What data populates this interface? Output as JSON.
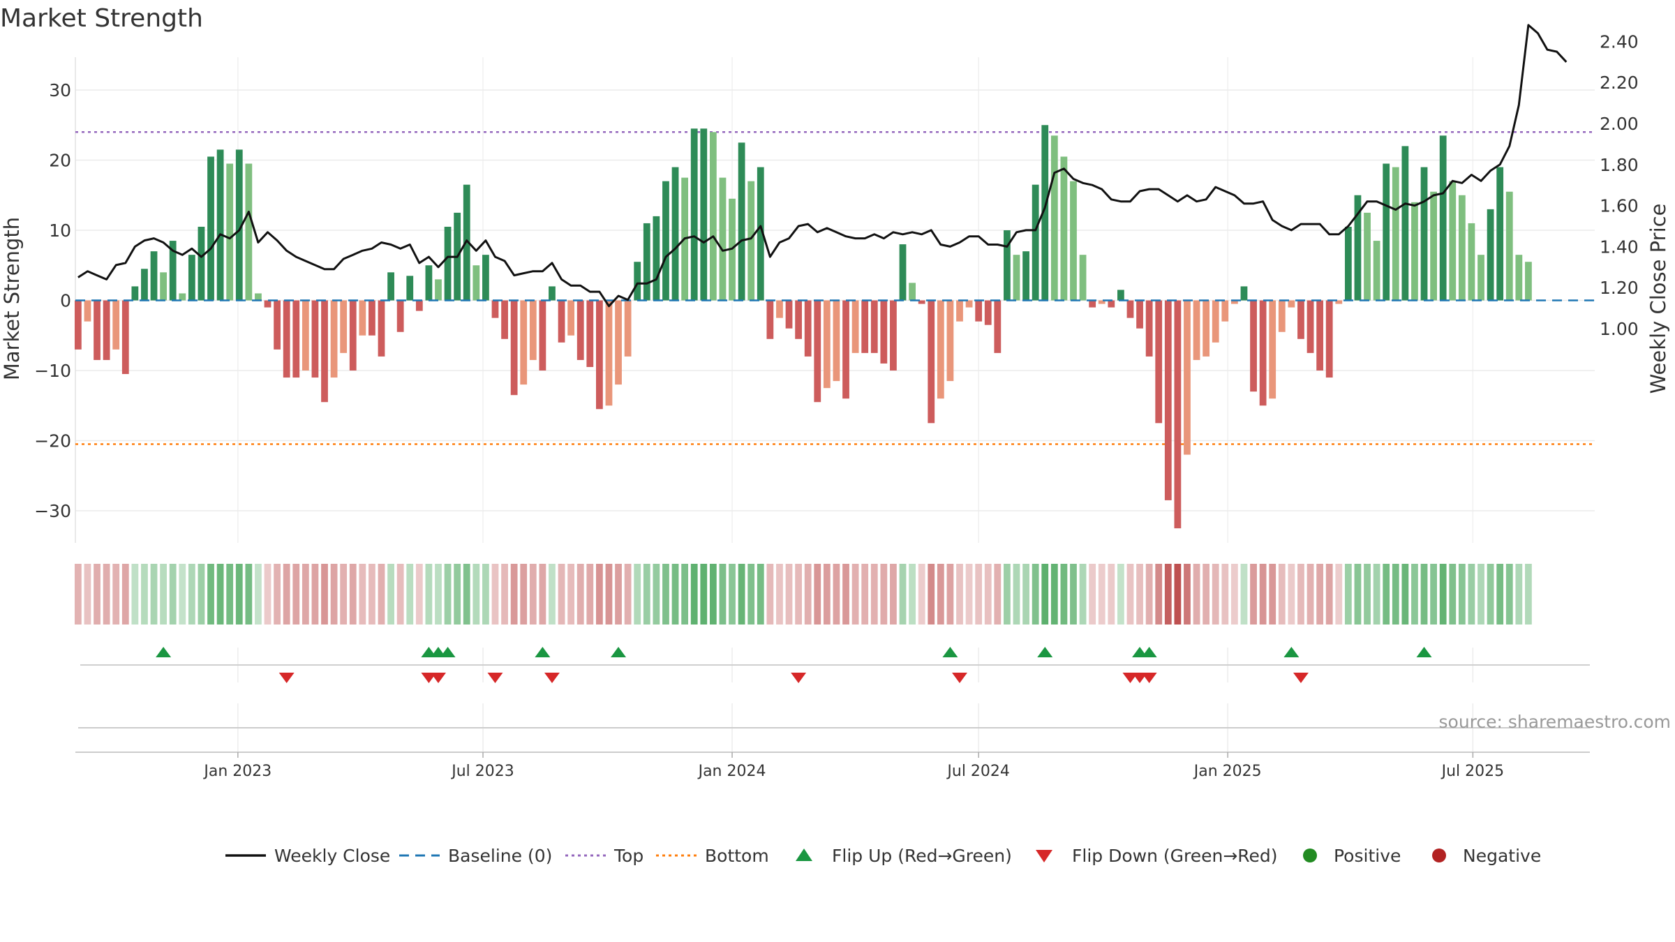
{
  "chart_data": {
    "type": "bar",
    "title": "Market Strength",
    "ylabel_left": "Market Strength",
    "ylabel_right": "Weekly Close Price",
    "source": "source: sharemaestro.com",
    "y_left_range": [
      -35,
      35
    ],
    "y_left_ticks": [
      30,
      20,
      10,
      0,
      -10,
      -20,
      -30
    ],
    "y_left_tick_labels": [
      "30",
      "20",
      "10",
      "0",
      "−10",
      "−20",
      "−30"
    ],
    "y_right_range": [
      0.97,
      2.53
    ],
    "y_right_ticks": [
      2.4,
      2.2,
      2.0,
      1.8,
      1.6,
      1.4,
      1.2,
      1.0
    ],
    "y_right_tick_labels": [
      "2.40",
      "2.20",
      "2.00",
      "1.80",
      "1.60",
      "1.40",
      "1.20",
      "1.00"
    ],
    "x_range": [
      "2022-09-03",
      "2025-09-29"
    ],
    "x_ticks": [
      "2023-01-01",
      "2023-07-01",
      "2024-01-01",
      "2024-07-01",
      "2025-01-01",
      "2025-07-01"
    ],
    "x_tick_labels": [
      "Jan 2023",
      "Jul 2023",
      "Jan 2024",
      "Jul 2024",
      "Jan 2025",
      "Jul 2025"
    ],
    "first_week": "2022-09-05",
    "top_line": 24,
    "bottom_line": -20.5,
    "grid": true,
    "legend_position": "bottom",
    "colors": {
      "strong_green": "#2e8b57",
      "light_green": "#7fbf7f",
      "strong_red": "#cd5c5c",
      "light_red": "#e9967a",
      "close_line": "#111111",
      "baseline": "#1f77b4",
      "top": "#9467bd",
      "bottom": "#ff7f0e",
      "flip_up": "#1a9641",
      "flip_down": "#d62728",
      "positive": "#228b22",
      "negative": "#b22222"
    },
    "series": [
      {
        "name": "Market Strength",
        "values": [
          -7,
          -3,
          -8.5,
          -8.5,
          -7,
          -10.5,
          2,
          4.5,
          7,
          4,
          8.5,
          1,
          6.5,
          10.5,
          20.5,
          21.5,
          19.5,
          21.5,
          19.5,
          1,
          -1,
          -7,
          -11,
          -11,
          -10,
          -11,
          -14.5,
          -11,
          -7.5,
          -10,
          -5,
          -5,
          -8,
          4,
          -4.5,
          3.5,
          -1.5,
          5,
          3,
          10.5,
          12.5,
          16.5,
          5,
          6.5,
          -2.5,
          -5.5,
          -13.5,
          -12,
          -8.5,
          -10,
          2,
          -6,
          -5,
          -8.5,
          -9.5,
          -15.5,
          -15,
          -12,
          -8,
          5.5,
          11,
          12,
          17,
          19,
          17.5,
          24.5,
          24.5,
          24,
          17.5,
          14.5,
          22.5,
          17,
          19,
          -5.5,
          -2.5,
          -4,
          -5.5,
          -8,
          -14.5,
          -12.5,
          -11.5,
          -14,
          -7.5,
          -7.5,
          -7.5,
          -9,
          -10,
          8,
          2.5,
          -0.5,
          -17.5,
          -14,
          -11.5,
          -3,
          -1,
          -3,
          -3.5,
          -7.5,
          10,
          6.5,
          7,
          16.5,
          25,
          23.5,
          20.5,
          17,
          6.5,
          -1,
          -0.5,
          -1,
          1.5,
          -2.5,
          -4,
          -8,
          -17.5,
          -28.5,
          -32.5,
          -22,
          -8.5,
          -8,
          -6,
          -3,
          -0.5,
          2,
          -13,
          -15,
          -14,
          -4.5,
          -1,
          -5.5,
          -7.5,
          -10,
          -11,
          -0.5,
          10.5,
          15,
          12.5,
          8.5,
          19.5,
          19,
          22,
          14,
          19,
          15.5,
          23.5,
          17,
          15,
          11,
          6.5,
          13,
          19,
          15.5,
          6.5,
          5.5
        ]
      },
      {
        "name": "Weekly Close",
        "values": [
          1.25,
          1.28,
          1.26,
          1.24,
          1.31,
          1.32,
          1.4,
          1.43,
          1.44,
          1.42,
          1.38,
          1.36,
          1.39,
          1.35,
          1.39,
          1.46,
          1.44,
          1.48,
          1.57,
          1.42,
          1.47,
          1.43,
          1.38,
          1.35,
          1.33,
          1.31,
          1.29,
          1.29,
          1.34,
          1.36,
          1.38,
          1.39,
          1.42,
          1.41,
          1.39,
          1.41,
          1.32,
          1.35,
          1.3,
          1.35,
          1.35,
          1.43,
          1.38,
          1.43,
          1.35,
          1.33,
          1.26,
          1.27,
          1.28,
          1.28,
          1.32,
          1.24,
          1.21,
          1.21,
          1.18,
          1.18,
          1.11,
          1.16,
          1.14,
          1.22,
          1.22,
          1.24,
          1.35,
          1.39,
          1.44,
          1.45,
          1.42,
          1.45,
          1.38,
          1.39,
          1.43,
          1.44,
          1.5,
          1.35,
          1.42,
          1.44,
          1.5,
          1.51,
          1.47,
          1.49,
          1.47,
          1.45,
          1.44,
          1.44,
          1.46,
          1.44,
          1.47,
          1.46,
          1.47,
          1.46,
          1.48,
          1.41,
          1.4,
          1.42,
          1.45,
          1.45,
          1.41,
          1.41,
          1.4,
          1.47,
          1.48,
          1.48,
          1.59,
          1.76,
          1.78,
          1.73,
          1.71,
          1.7,
          1.68,
          1.63,
          1.62,
          1.62,
          1.67,
          1.68,
          1.68,
          1.65,
          1.62,
          1.65,
          1.62,
          1.63,
          1.69,
          1.67,
          1.65,
          1.61,
          1.61,
          1.62,
          1.53,
          1.5,
          1.48,
          1.51,
          1.51,
          1.51,
          1.46,
          1.46,
          1.5,
          1.56,
          1.62,
          1.62,
          1.6,
          1.58,
          1.61,
          1.6,
          1.62,
          1.65,
          1.66,
          1.72,
          1.71,
          1.75,
          1.72,
          1.77,
          1.8,
          1.89,
          2.09,
          2.48,
          2.44,
          2.36,
          2.35,
          2.3
        ]
      }
    ],
    "regime_strip": {
      "name": "Positive / Negative",
      "sign": "series Market Strength"
    },
    "flip_up_weeks": [
      "2022-11-07",
      "2023-05-22",
      "2023-05-29",
      "2023-06-05",
      "2023-08-14",
      "2023-10-09",
      "2024-06-10",
      "2024-08-19",
      "2024-10-28",
      "2024-11-04",
      "2025-02-17",
      "2025-05-26"
    ],
    "flip_down_weeks": [
      "2023-02-06",
      "2023-05-22",
      "2023-05-29",
      "2023-07-10",
      "2023-08-21",
      "2024-02-19",
      "2024-06-17",
      "2024-10-21",
      "2024-10-28",
      "2024-11-04",
      "2025-02-24"
    ],
    "legend": [
      {
        "label": "Weekly Close",
        "symbol": "solid-line-icon",
        "color": "#111111"
      },
      {
        "label": "Baseline (0)",
        "symbol": "dashed-line-icon",
        "color": "#1f77b4"
      },
      {
        "label": "Top",
        "symbol": "dotted-line-icon",
        "color": "#9467bd"
      },
      {
        "label": "Bottom",
        "symbol": "dotted-line-icon",
        "color": "#ff7f0e"
      },
      {
        "label": "Flip Up (Red→Green)",
        "symbol": "triangle-up-icon",
        "color": "#1a9641"
      },
      {
        "label": "Flip Down (Green→Red)",
        "symbol": "triangle-down-icon",
        "color": "#d62728"
      },
      {
        "label": "Positive",
        "symbol": "circle-icon",
        "color": "#228b22"
      },
      {
        "label": "Negative",
        "symbol": "circle-icon",
        "color": "#b22222"
      }
    ]
  }
}
